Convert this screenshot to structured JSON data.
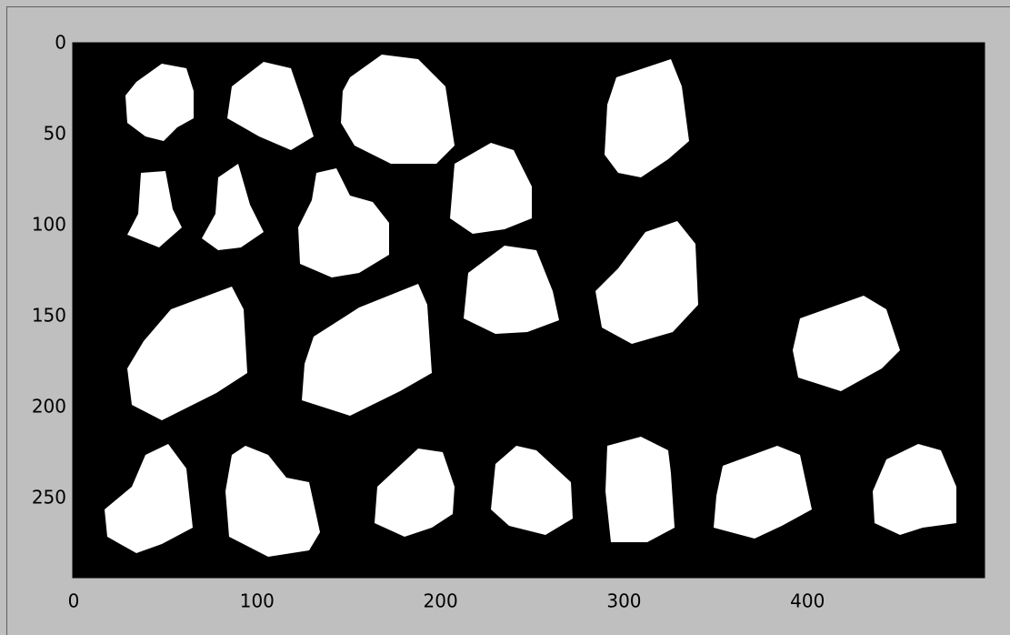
{
  "chart_data": {
    "type": "image",
    "xlim": [
      -0.5,
      496.5
    ],
    "ylim": [
      293.5,
      -0.5
    ],
    "xticks": [
      0,
      100,
      200,
      300,
      400
    ],
    "yticks": [
      0,
      50,
      100,
      150,
      200,
      250
    ]
  }
}
